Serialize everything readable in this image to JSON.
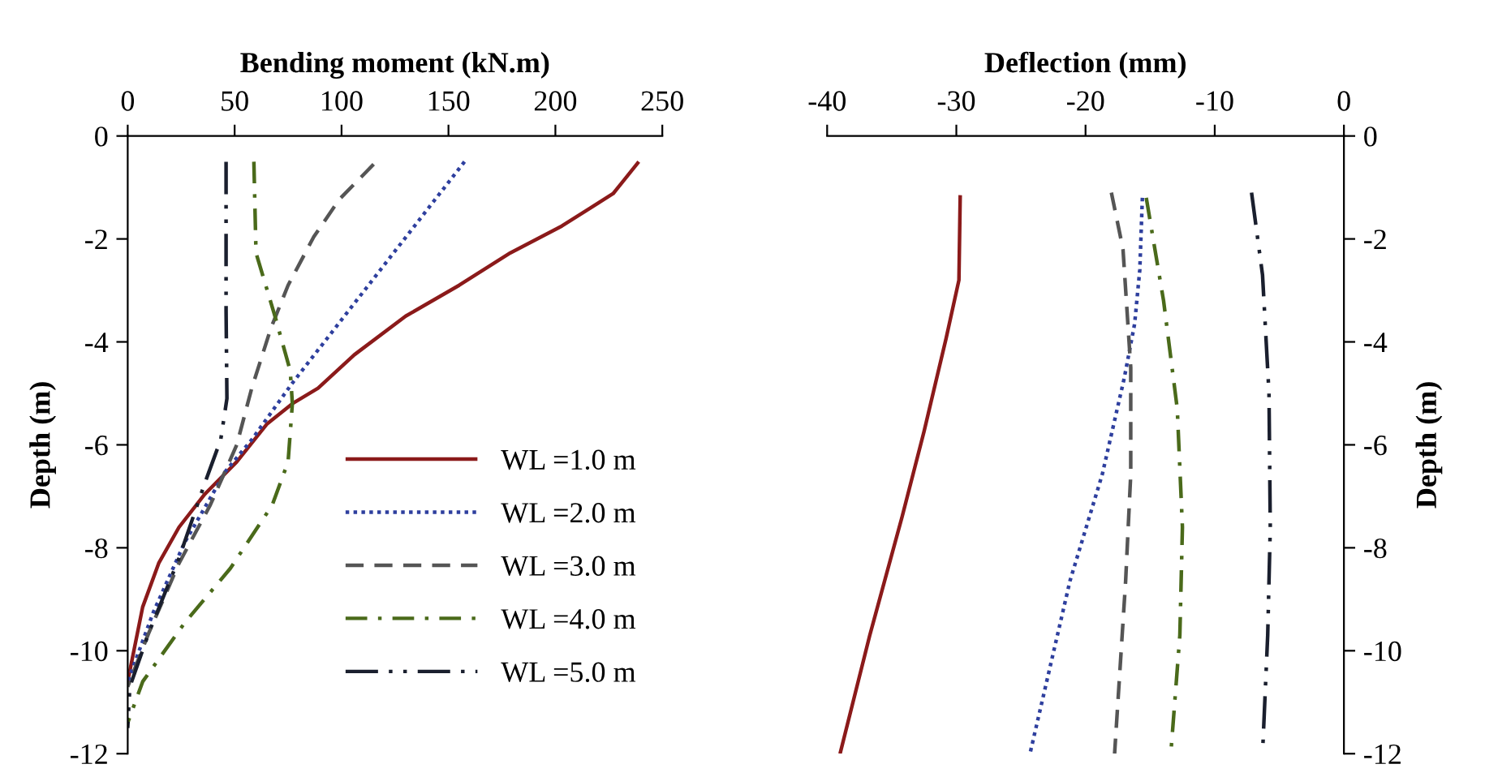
{
  "chart_data": [
    {
      "type": "line",
      "xlabel": "Bending moment (kN.m)",
      "ylabel": "Depth (m)",
      "xlim": [
        0,
        250
      ],
      "xticks": [
        0,
        50,
        100,
        150,
        200,
        250
      ],
      "ylim": [
        -12,
        0
      ],
      "yticks": [
        0,
        -2,
        -4,
        -6,
        -8,
        -10,
        -12
      ],
      "grid": false,
      "legend": "right",
      "series": [
        {
          "name": "WL =1.0 m",
          "color": "#8b1a1a",
          "line_style": "solid",
          "x": [
            239,
            227,
            203,
            179,
            155,
            130,
            106,
            89,
            77,
            65,
            51,
            36,
            24,
            14.5,
            7,
            2.4,
            0
          ],
          "values": [
            -0.5,
            -1.12,
            -1.75,
            -2.27,
            -2.9,
            -3.5,
            -4.25,
            -4.9,
            -5.2,
            -5.6,
            -6.33,
            -6.96,
            -7.6,
            -8.3,
            -9.15,
            -10.1,
            -10.6
          ]
        },
        {
          "name": "WL =2.0 m",
          "color": "#2e3f9e",
          "line_style": "dotted",
          "x": [
            157.5,
            77,
            58,
            46,
            26.6,
            12,
            0
          ],
          "values": [
            -0.5,
            -4.8,
            -5.9,
            -6.5,
            -7.9,
            -9.25,
            -10.6
          ]
        },
        {
          "name": "WL =3.0 m",
          "color": "#555555",
          "line_style": "dashed",
          "x": [
            115,
            99,
            87,
            75,
            67,
            58,
            51,
            38.6,
            24,
            9.7,
            0
          ],
          "values": [
            -0.55,
            -1.23,
            -1.96,
            -2.9,
            -3.73,
            -4.9,
            -6.0,
            -7.17,
            -8.3,
            -9.67,
            -10.7
          ]
        },
        {
          "name": "WL =4.0 m",
          "color": "#4a6a1a",
          "line_style": "dashdot",
          "x": [
            59,
            60,
            69,
            76,
            77,
            75,
            67.6,
            48,
            26.6,
            7,
            0
          ],
          "values": [
            -0.5,
            -2.27,
            -3.52,
            -4.56,
            -5.2,
            -6.33,
            -7.17,
            -8.4,
            -9.46,
            -10.6,
            -11.4
          ]
        },
        {
          "name": "WL =5.0 m",
          "color": "#1a1f2e",
          "line_style": "dashdotdot",
          "x": [
            46,
            46,
            46.4,
            43.5,
            36,
            24,
            9.7,
            1,
            0
          ],
          "values": [
            -0.5,
            -3.4,
            -5.1,
            -5.9,
            -6.75,
            -8.2,
            -9.67,
            -10.7,
            -11.5
          ]
        }
      ]
    },
    {
      "type": "line",
      "xlabel": "Deflection (mm)",
      "ylabel": "Depth (m)",
      "xlim": [
        -40,
        0
      ],
      "xticks": [
        -40,
        -30,
        -20,
        -10,
        0
      ],
      "ylim": [
        -12,
        0
      ],
      "yticks": [
        0,
        -2,
        -4,
        -6,
        -8,
        -10,
        -12
      ],
      "grid": false,
      "series": [
        {
          "color": "#8b1a1a",
          "line_style": "solid",
          "x": [
            -29.7,
            -29.8,
            -30.8,
            -32.5,
            -34.2,
            -36.7,
            -39
          ],
          "values": [
            -1.15,
            -2.8,
            -3.94,
            -5.74,
            -7.4,
            -9.7,
            -12
          ]
        },
        {
          "color": "#2e3f9e",
          "line_style": "dotted",
          "x": [
            -15.6,
            -15.8,
            -16.2,
            -17,
            -18.7,
            -21.2,
            -24.3
          ],
          "values": [
            -1.2,
            -2.6,
            -3.65,
            -4.7,
            -6.57,
            -8.64,
            -12
          ]
        },
        {
          "color": "#555555",
          "line_style": "dashed",
          "x": [
            -18,
            -17.1,
            -16.5,
            -16.5,
            -16.9,
            -17.75
          ],
          "values": [
            -1.1,
            -2.2,
            -4.5,
            -6.57,
            -8.66,
            -12
          ]
        },
        {
          "color": "#4a6a1a",
          "line_style": "dashdot",
          "x": [
            -15.3,
            -13.96,
            -12.9,
            -12.5,
            -12.7,
            -13.4
          ],
          "values": [
            -1.2,
            -3.2,
            -5.3,
            -7.6,
            -9.7,
            -12
          ]
        },
        {
          "color": "#1a1f2e",
          "line_style": "dashdotdot",
          "x": [
            -7.15,
            -6.3,
            -5.8,
            -5.7,
            -5.9,
            -6.3
          ],
          "values": [
            -1.1,
            -2.7,
            -5,
            -7.6,
            -9.7,
            -12
          ]
        }
      ]
    }
  ]
}
